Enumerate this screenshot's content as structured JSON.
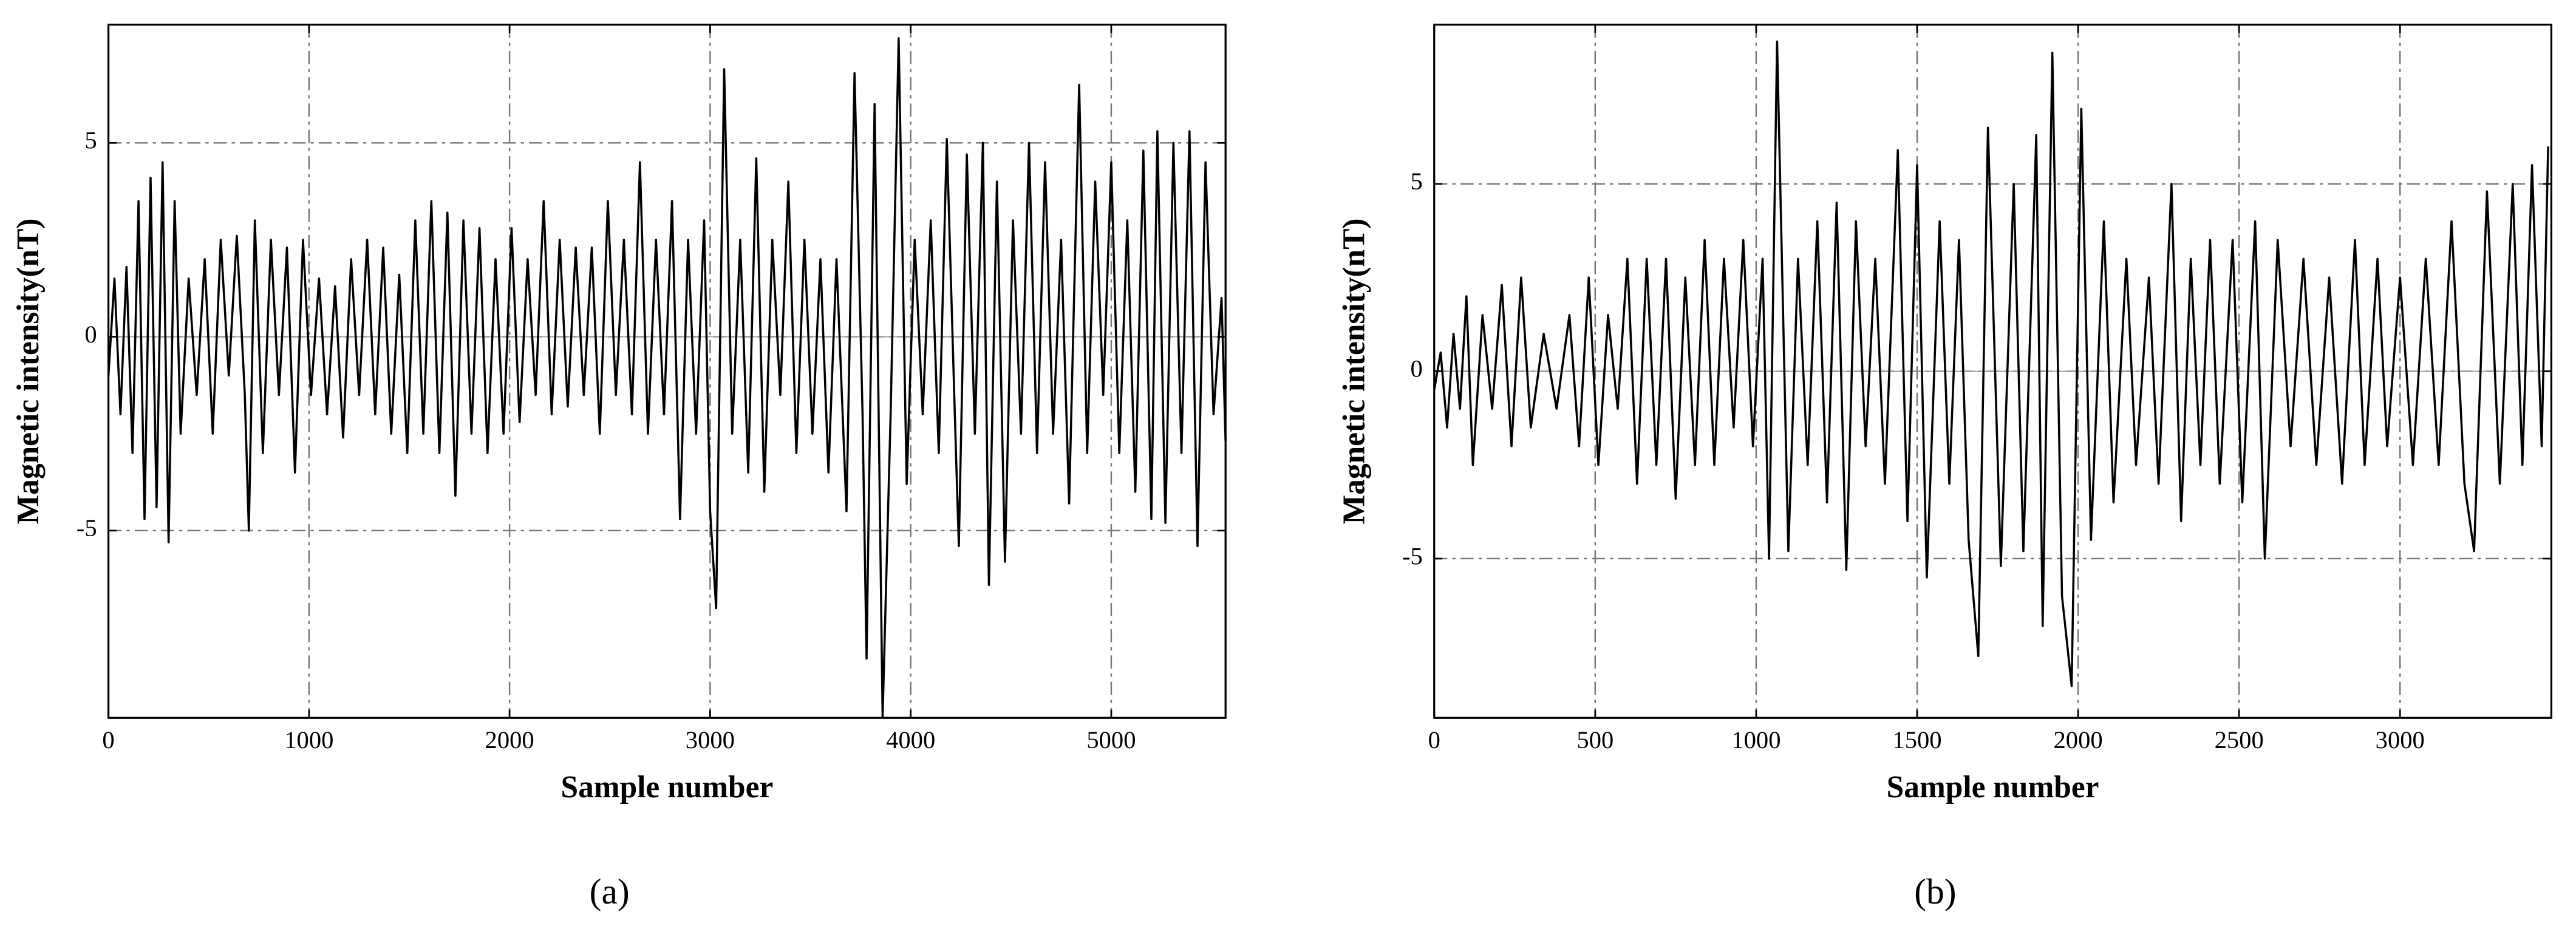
{
  "chart_data": [
    {
      "type": "line",
      "caption": "(a)",
      "xlabel": "Sample number",
      "ylabel": "Magnetic intensity(nT)",
      "color": "#000000",
      "grid": true,
      "xlim": [
        0,
        5570
      ],
      "ylim": [
        -9.83,
        8.05
      ],
      "xticks": [
        0,
        1000,
        2000,
        3000,
        4000,
        5000
      ],
      "yticks": [
        -5,
        0,
        5
      ],
      "x": [
        0,
        30,
        60,
        90,
        120,
        150,
        180,
        210,
        240,
        270,
        300,
        330,
        360,
        400,
        440,
        480,
        520,
        560,
        600,
        640,
        680,
        700,
        730,
        770,
        810,
        850,
        890,
        930,
        970,
        1010,
        1050,
        1090,
        1130,
        1170,
        1210,
        1250,
        1290,
        1330,
        1370,
        1410,
        1450,
        1490,
        1530,
        1570,
        1610,
        1650,
        1690,
        1730,
        1770,
        1810,
        1850,
        1890,
        1930,
        1970,
        2010,
        2050,
        2090,
        2130,
        2170,
        2210,
        2250,
        2290,
        2330,
        2370,
        2410,
        2450,
        2490,
        2530,
        2570,
        2610,
        2650,
        2690,
        2730,
        2770,
        2810,
        2850,
        2890,
        2930,
        2970,
        3000,
        3030,
        3070,
        3110,
        3150,
        3190,
        3230,
        3270,
        3310,
        3350,
        3390,
        3430,
        3470,
        3510,
        3550,
        3590,
        3630,
        3680,
        3720,
        3760,
        3780,
        3820,
        3860,
        3900,
        3940,
        3980,
        4020,
        4060,
        4100,
        4140,
        4180,
        4220,
        4240,
        4280,
        4320,
        4360,
        4390,
        4430,
        4470,
        4510,
        4550,
        4590,
        4630,
        4670,
        4710,
        4750,
        4790,
        4840,
        4880,
        4920,
        4960,
        5000,
        5040,
        5080,
        5120,
        5160,
        5200,
        5230,
        5270,
        5310,
        5350,
        5390,
        5430,
        5470,
        5510,
        5550,
        5570
      ],
      "values": [
        -1,
        1.5,
        -2,
        1.8,
        -3,
        3.5,
        -4.7,
        4.1,
        -4.4,
        4.5,
        -5.3,
        3.5,
        -2.5,
        1.5,
        -1.5,
        2.0,
        -2.5,
        2.5,
        -1.0,
        2.6,
        -1.5,
        -5.0,
        3.0,
        -3.0,
        2.5,
        -1.5,
        2.3,
        -3.5,
        2.5,
        -1.5,
        1.5,
        -2.0,
        1.3,
        -2.6,
        2.0,
        -1.5,
        2.5,
        -2.0,
        2.3,
        -2.5,
        1.6,
        -3.0,
        3.0,
        -2.5,
        3.5,
        -3.0,
        3.2,
        -4.1,
        3.0,
        -2.5,
        2.8,
        -3.0,
        2.0,
        -2.5,
        2.8,
        -2.2,
        2.0,
        -1.5,
        3.5,
        -2.0,
        2.5,
        -1.8,
        2.3,
        -1.5,
        2.3,
        -2.5,
        3.5,
        -1.5,
        2.5,
        -2.0,
        4.5,
        -2.5,
        2.5,
        -2.0,
        3.5,
        -4.7,
        2.5,
        -2.5,
        3.0,
        -4.5,
        -7.0,
        6.9,
        -2.5,
        2.5,
        -3.5,
        4.6,
        -4.0,
        2.5,
        -1.5,
        4.0,
        -3.0,
        2.5,
        -2.5,
        2.0,
        -3.5,
        2.0,
        -4.5,
        6.8,
        -2.0,
        -8.3,
        6.0,
        -9.8,
        -2.0,
        7.7,
        -3.8,
        2.5,
        -2.0,
        3.0,
        -3.0,
        5.1,
        -2.0,
        -5.4,
        4.7,
        -2.5,
        5.0,
        -6.4,
        4.0,
        -5.8,
        3.0,
        -2.5,
        5.0,
        -3.0,
        4.5,
        -2.5,
        2.5,
        -4.3,
        6.5,
        -3.0,
        4.0,
        -1.5,
        4.5,
        -3.0,
        3.0,
        -4.0,
        4.8,
        -4.7,
        5.3,
        -4.8,
        5.0,
        -3.0,
        5.3,
        -5.4,
        4.5,
        -2.0,
        1.0,
        -2.7
      ]
    },
    {
      "type": "line",
      "caption": "(b)",
      "xlabel": "Sample number",
      "ylabel": "Magnetic intensity(nT)",
      "color": "#000000",
      "grid": true,
      "xlim": [
        0,
        3470
      ],
      "ylim": [
        -9.25,
        9.25
      ],
      "xticks": [
        0,
        500,
        1000,
        1500,
        2000,
        2500,
        3000
      ],
      "yticks": [
        -5,
        0,
        5
      ],
      "x": [
        0,
        20,
        40,
        60,
        80,
        100,
        120,
        150,
        180,
        210,
        240,
        270,
        300,
        340,
        380,
        420,
        450,
        480,
        510,
        540,
        570,
        600,
        630,
        660,
        690,
        720,
        750,
        780,
        810,
        840,
        870,
        900,
        930,
        960,
        990,
        1020,
        1040,
        1065,
        1100,
        1130,
        1160,
        1190,
        1220,
        1250,
        1280,
        1310,
        1340,
        1370,
        1400,
        1440,
        1470,
        1500,
        1530,
        1570,
        1600,
        1630,
        1660,
        1690,
        1720,
        1760,
        1800,
        1830,
        1870,
        1890,
        1920,
        1950,
        1980,
        2010,
        2040,
        2080,
        2110,
        2150,
        2180,
        2220,
        2250,
        2290,
        2320,
        2350,
        2380,
        2410,
        2440,
        2480,
        2510,
        2550,
        2580,
        2620,
        2660,
        2700,
        2740,
        2780,
        2820,
        2860,
        2890,
        2930,
        2960,
        3000,
        3040,
        3080,
        3120,
        3160,
        3200,
        3230,
        3270,
        3310,
        3350,
        3380,
        3410,
        3440,
        3460
      ],
      "values": [
        -0.5,
        0.5,
        -1.5,
        1.0,
        -1.0,
        2.0,
        -2.5,
        1.5,
        -1.0,
        2.3,
        -2.0,
        2.5,
        -1.5,
        1.0,
        -1.0,
        1.5,
        -2.0,
        2.5,
        -2.5,
        1.5,
        -1.0,
        3.0,
        -3.0,
        3.0,
        -2.5,
        3.0,
        -3.4,
        2.5,
        -2.5,
        3.5,
        -2.5,
        3.0,
        -1.5,
        3.5,
        -2.0,
        3.0,
        -5.0,
        8.8,
        -4.8,
        3.0,
        -2.5,
        4.0,
        -3.5,
        4.5,
        -5.3,
        4.0,
        -2.0,
        3.0,
        -3.0,
        5.9,
        -4.0,
        5.5,
        -5.5,
        4.0,
        -3.0,
        3.5,
        -4.5,
        -7.6,
        6.5,
        -5.2,
        5.0,
        -4.8,
        6.3,
        -6.8,
        8.5,
        -6.0,
        -8.4,
        7.0,
        -4.5,
        4.0,
        -3.5,
        3.0,
        -2.5,
        2.5,
        -3.0,
        5.0,
        -4.0,
        3.0,
        -2.5,
        3.5,
        -3.0,
        3.5,
        -3.5,
        4.0,
        -5.0,
        3.5,
        -2.0,
        3.0,
        -2.5,
        2.5,
        -3.0,
        3.5,
        -2.5,
        3.0,
        -2.0,
        2.5,
        -2.5,
        3.0,
        -2.5,
        4.0,
        -3.0,
        -4.8,
        4.8,
        -3.0,
        5.0,
        -2.5,
        5.5,
        -2.0,
        6.0
      ]
    }
  ]
}
